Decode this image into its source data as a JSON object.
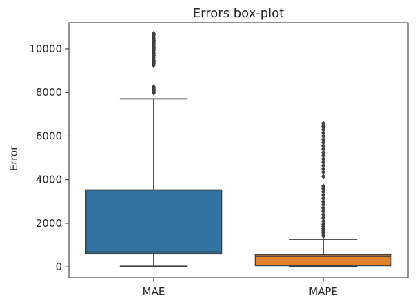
{
  "chart_data": {
    "type": "boxplot",
    "title": "Errors box-plot",
    "xlabel": "",
    "ylabel": "Error",
    "ylim": [
      -500,
      11200
    ],
    "yticks": [
      0,
      2000,
      4000,
      6000,
      8000,
      10000
    ],
    "ytick_labels": [
      "0",
      "2000",
      "4000",
      "6000",
      "8000",
      "10000"
    ],
    "grid": false,
    "categories": [
      "MAE",
      "MAPE"
    ],
    "boxes": [
      {
        "category": "MAE",
        "color": "#3274a1",
        "whisker_low": 30,
        "q1": 600,
        "median": 690,
        "q3": 3530,
        "whisker_high": 7710,
        "outliers": [
          7980,
          8020,
          8070,
          8110,
          8150,
          8200,
          8250,
          9250,
          9330,
          9400,
          9470,
          9540,
          9620,
          9700,
          9780,
          9850,
          9930,
          10000,
          10080,
          10160,
          10240,
          10320,
          10400,
          10480,
          10560,
          10640,
          10700
        ]
      },
      {
        "category": "MAPE",
        "color": "#e1812c",
        "whisker_low": 20,
        "q1": 60,
        "median": 480,
        "q3": 560,
        "whisker_high": 1270,
        "outliers": [
          1420,
          1500,
          1580,
          1660,
          1750,
          1850,
          1950,
          2100,
          2250,
          2400,
          2550,
          2700,
          2850,
          3000,
          3150,
          3300,
          3450,
          3600,
          3700,
          4150,
          4350,
          4500,
          4650,
          4800,
          4950,
          5100,
          5250,
          5400,
          5550,
          5700,
          5850,
          6000,
          6150,
          6300,
          6450,
          6580
        ]
      }
    ]
  },
  "colors": {
    "axis": "#262626",
    "line": "#3f3f3f"
  }
}
